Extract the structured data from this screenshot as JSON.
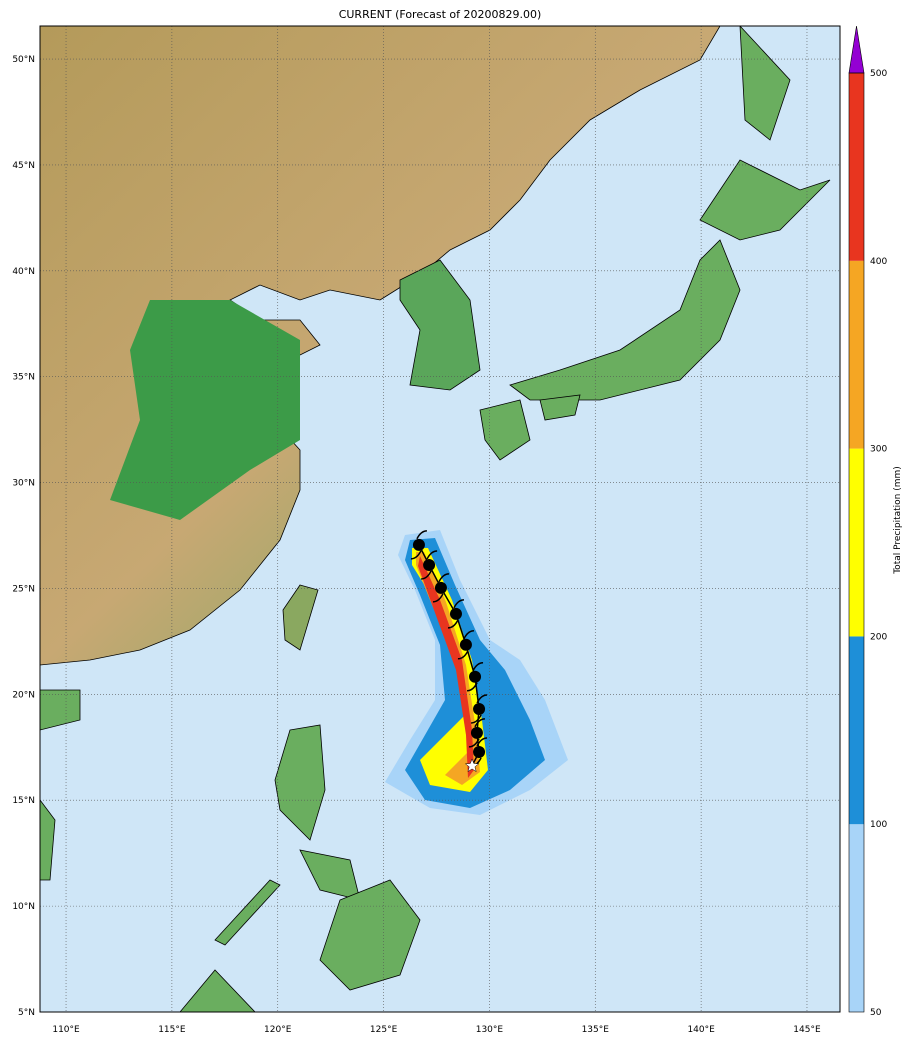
{
  "title": "CURRENT (Forecast of 20200829.00)",
  "map": {
    "lon_range": [
      108.77,
      146.56
    ],
    "lat_range": [
      5.0,
      51.56
    ],
    "lon_ticks": [
      110,
      115,
      120,
      125,
      130,
      135,
      140,
      145
    ],
    "lon_tick_labels": [
      "110°E",
      "115°E",
      "120°E",
      "125°E",
      "130°E",
      "135°E",
      "140°E",
      "145°E"
    ],
    "lat_ticks": [
      5,
      10,
      15,
      20,
      25,
      30,
      35,
      40,
      45,
      50
    ],
    "lat_tick_labels": [
      "5°N",
      "10°N",
      "15°N",
      "20°N",
      "25°N",
      "30°N",
      "35°N",
      "40°N",
      "45°N",
      "50°N"
    ],
    "grid": "dotted",
    "colors": {
      "ocean": "#cfe6f7",
      "land_low": "#3c9b48",
      "land_high": "#b49a5a",
      "track": "#000000",
      "current_position": "#ffffff"
    },
    "storm_track": [
      {
        "lon": 126.67,
        "lat": 27.06
      },
      {
        "lon": 127.15,
        "lat": 26.11
      },
      {
        "lon": 127.71,
        "lat": 25.03
      },
      {
        "lon": 128.42,
        "lat": 23.8
      },
      {
        "lon": 128.89,
        "lat": 22.34
      },
      {
        "lon": 129.32,
        "lat": 20.83
      },
      {
        "lon": 129.51,
        "lat": 19.31
      },
      {
        "lon": 129.41,
        "lat": 18.18
      },
      {
        "lon": 129.51,
        "lat": 17.28
      }
    ],
    "current_position": {
      "lon": 129.18,
      "lat": 16.62,
      "icon": "star-icon"
    }
  },
  "colorbar": {
    "label": "Total Precipitation (mm)",
    "levels": [
      50,
      100,
      200,
      300,
      400,
      500
    ],
    "level_labels": [
      "50",
      "100",
      "200",
      "300",
      "400",
      "500"
    ],
    "colors": [
      "#a8d4f8",
      "#1e8fd8",
      "#ffff00",
      "#f5a623",
      "#e8351f"
    ],
    "extend_color": "#9400d3"
  }
}
